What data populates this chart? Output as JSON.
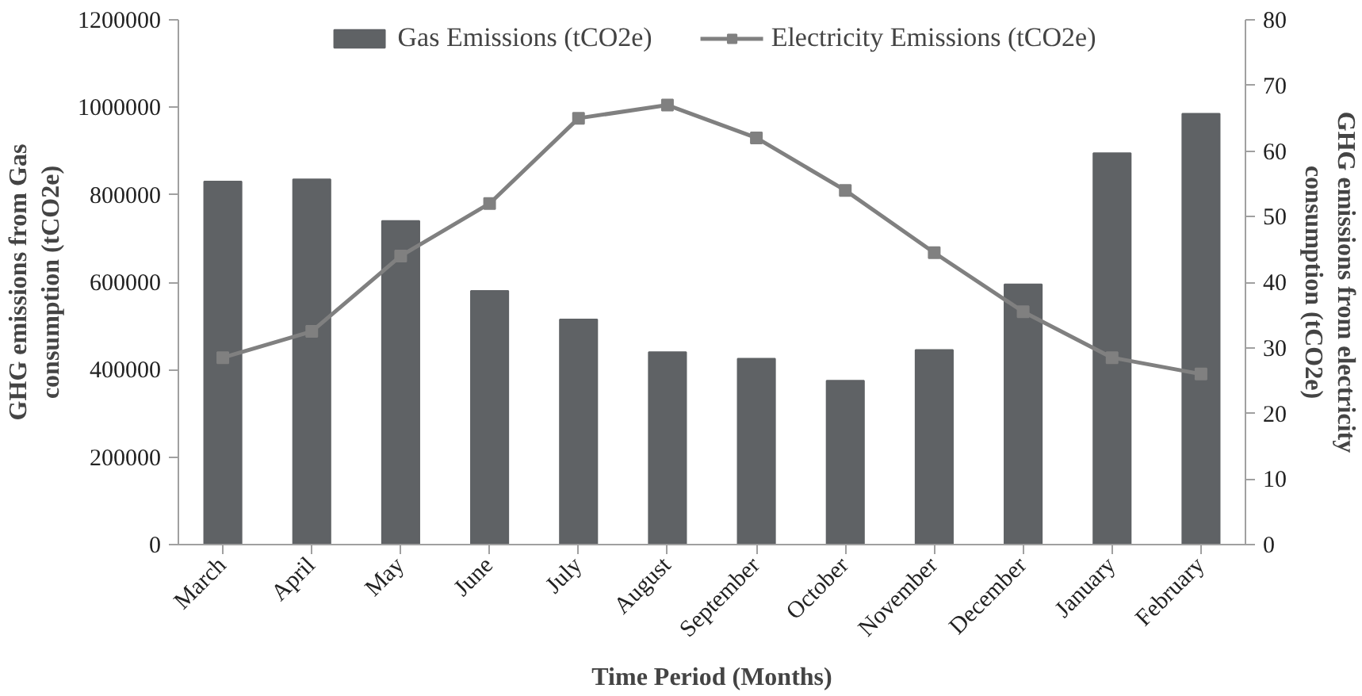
{
  "chart_data": {
    "type": "bar",
    "xlabel": "Time Period (Months)",
    "ylabel": "GHG emissions from Gas consumption (tCO2e)",
    "y2label": "GHG emissions from electricity consumption (tCO2e)",
    "categories": [
      "March",
      "April",
      "May",
      "June",
      "July",
      "August",
      "September",
      "October",
      "November",
      "December",
      "January",
      "February"
    ],
    "series": [
      {
        "name": "Gas Emissions (tCO2e)",
        "color": "#5f6265",
        "values": [
          830000,
          835000,
          740000,
          580000,
          515000,
          440000,
          425000,
          375000,
          445000,
          595000,
          895000,
          985000
        ]
      },
      {
        "name": "Electricity Emissions (tCO2e)",
        "type": "line",
        "axis": "y2",
        "color": "#808080",
        "marker": "square",
        "values": [
          28.5,
          32.5,
          44,
          52,
          65,
          67,
          62,
          54,
          44.5,
          35.5,
          28.5,
          26
        ]
      }
    ],
    "ylim": [
      0,
      1200000
    ],
    "yticks": [
      0,
      200000,
      400000,
      600000,
      800000,
      1000000,
      1200000
    ],
    "y2lim": [
      0,
      80
    ],
    "y2ticks": [
      0,
      10,
      20,
      30,
      40,
      50,
      60,
      70,
      80
    ],
    "grid": false,
    "legend": "top"
  }
}
